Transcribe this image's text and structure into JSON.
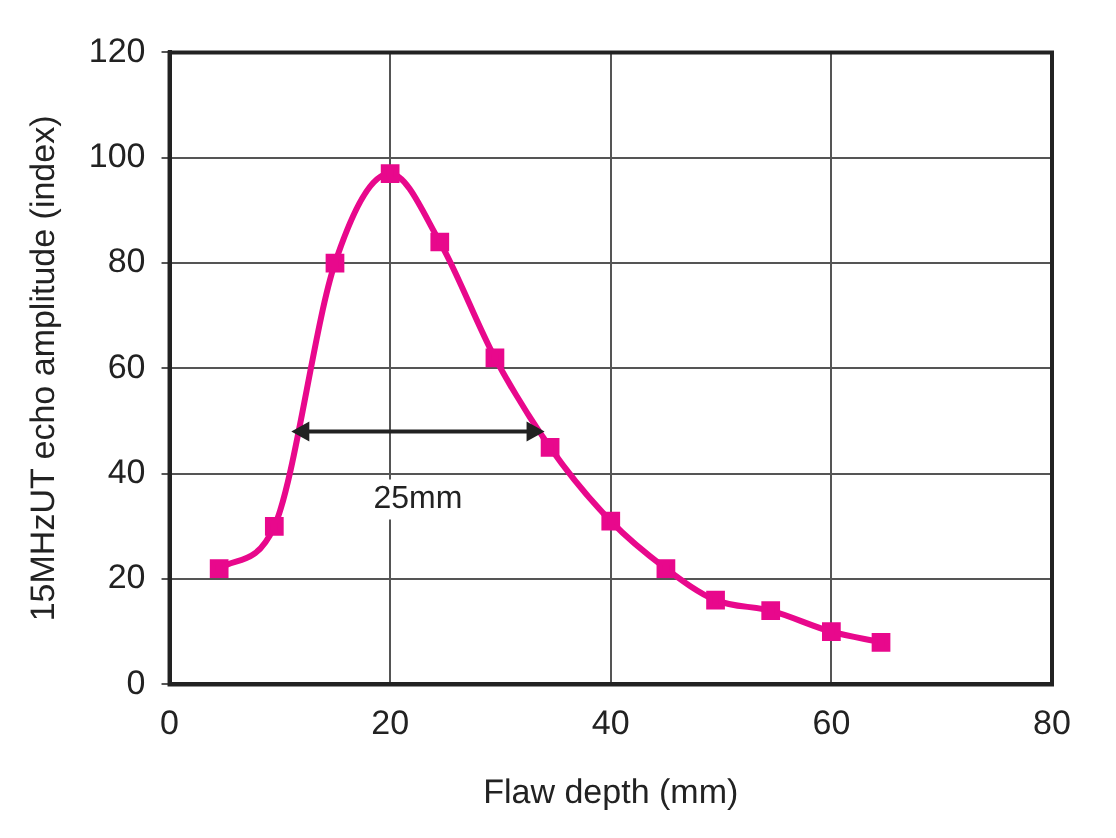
{
  "chart_data": {
    "type": "line",
    "xlabel": "Flaw depth (mm)",
    "ylabel": "15MHzUT echo amplitude (index)",
    "x": [
      4.5,
      9.5,
      15,
      20,
      24.5,
      29.5,
      34.5,
      40,
      45,
      49.5,
      54.5,
      60,
      64.5
    ],
    "series": [
      {
        "color": "#e8088c",
        "values": [
          22,
          30,
          80,
          97,
          84,
          62,
          45,
          31,
          22,
          16,
          14,
          10,
          8
        ]
      }
    ],
    "xlim": [
      0,
      80
    ],
    "xticks": [
      0,
      20,
      40,
      60,
      80
    ],
    "ylim": [
      0,
      120
    ],
    "yticks": [
      0,
      20,
      40,
      60,
      80,
      100,
      120
    ],
    "grid": true,
    "legend": false,
    "marker": "square",
    "line_style": "solid",
    "annotations": [
      "25mm"
    ]
  }
}
